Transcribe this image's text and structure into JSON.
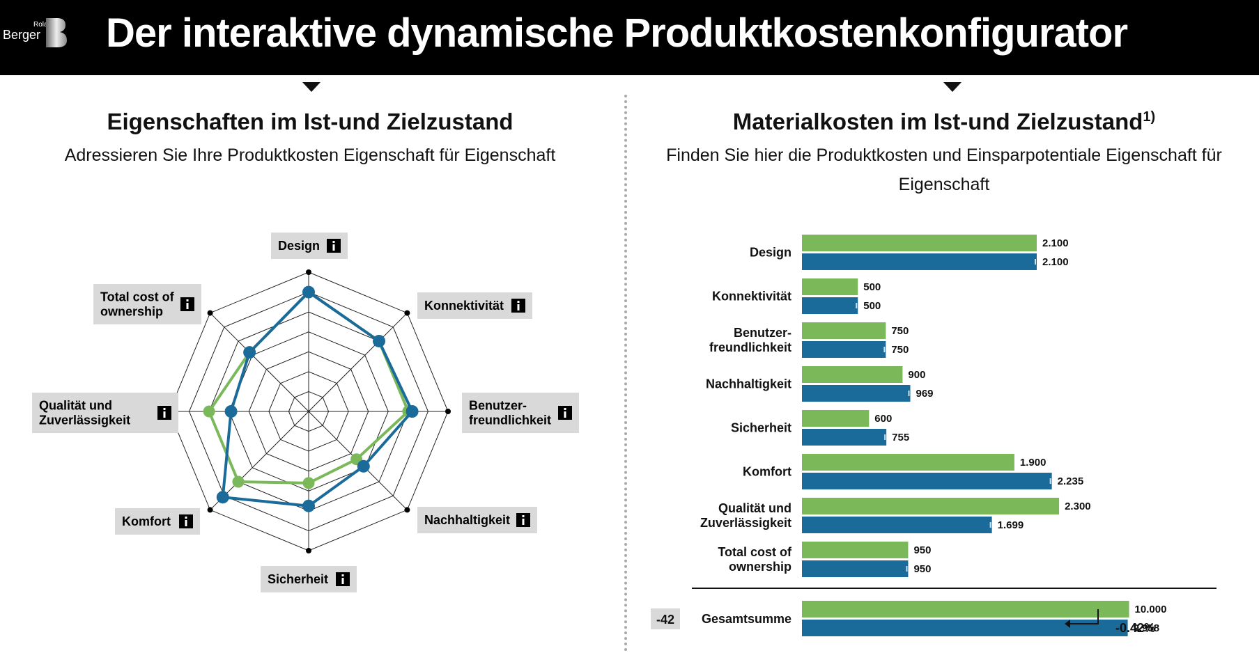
{
  "header": {
    "title": "Der interaktive dynamische Produktkostenkonfigurator",
    "logo_top": "Roland",
    "logo_bottom": "Berger"
  },
  "left": {
    "title": "Eigenschaften im Ist-und Zielzustand",
    "subtitle": "Adressieren Sie Ihre Produktkosten Eigenschaft für Eigenschaft"
  },
  "right": {
    "title": "Materialkosten im Ist-und Zielzustand",
    "title_sup": "1)",
    "subtitle_line1": "Finden Sie hier die Produktkosten und Einsparpotentiale Eigenschaft für",
    "subtitle_line2": "Eigenschaft"
  },
  "colors": {
    "green": "#7ab85a",
    "blue": "#1a6a9a",
    "label_bg": "#d9d9d9",
    "grid": "#222222"
  },
  "chart_data": [
    {
      "type": "radar",
      "axes": [
        [
          "Design"
        ],
        [
          "Konnektivität"
        ],
        [
          "Benutzer-",
          "freundlichkeit"
        ],
        [
          "Nachhaltigkeit"
        ],
        [
          "Sicherheit"
        ],
        [
          "Komfort"
        ],
        [
          "Qualität und",
          "Zuverlässigkeit"
        ],
        [
          "Total cost of",
          "ownership"
        ]
      ],
      "rlim": [
        0,
        7
      ],
      "grid_levels": 7,
      "info_icon": "info-icon",
      "series": [
        {
          "color": "green",
          "values": [
            6,
            5,
            5,
            3.4,
            3.6,
            5,
            5,
            4.2
          ]
        },
        {
          "color": "blue",
          "values": [
            6,
            5,
            5.2,
            3.9,
            4.75,
            6.1,
            3.9,
            4.2
          ]
        }
      ]
    },
    {
      "type": "bar",
      "orientation": "horizontal",
      "categories": [
        [
          "Design"
        ],
        [
          "Konnektivität"
        ],
        [
          "Benutzer-",
          "freundlichkeit"
        ],
        [
          "Nachhaltigkeit"
        ],
        [
          "Sicherheit"
        ],
        [
          "Komfort"
        ],
        [
          "Qualität und",
          "Zuverlässigkeit"
        ],
        [
          "Total cost of",
          "ownership"
        ]
      ],
      "series": [
        {
          "color": "green",
          "values": [
            2100,
            500,
            750,
            900,
            600,
            1900,
            2300,
            950
          ],
          "labels": [
            "2.100",
            "500",
            "750",
            "900",
            "600",
            "1.900",
            "2.300",
            "950"
          ]
        },
        {
          "color": "blue",
          "values": [
            2100,
            500,
            750,
            969,
            755,
            2235,
            1699,
            950
          ],
          "labels": [
            "2.100",
            "500",
            "750",
            "969",
            "755",
            "2.235",
            "1.699",
            "950"
          ]
        }
      ],
      "total": {
        "label": "Gesamtsumme",
        "green_value": 10000,
        "blue_value": 9958,
        "green_label": "10.000",
        "blue_label": "9.958",
        "delta": "-42",
        "delta_pct": "-0.42%"
      },
      "xlim": [
        0,
        2500
      ]
    }
  ]
}
